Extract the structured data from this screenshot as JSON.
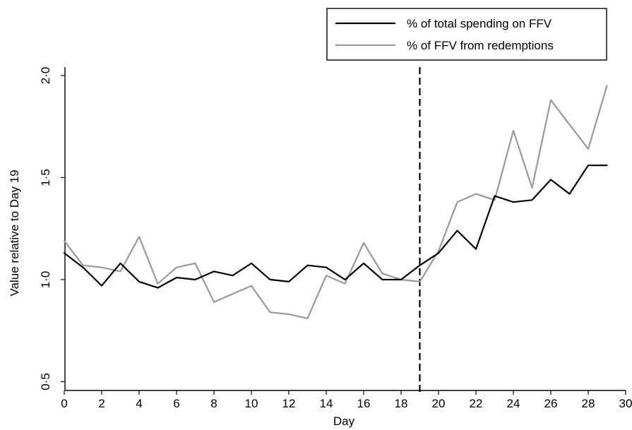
{
  "chart_data": {
    "type": "line",
    "title": "",
    "xlabel": "Day",
    "ylabel": "Value relative to Day 19",
    "xlim": [
      0,
      30
    ],
    "ylim": [
      0.5,
      2.0
    ],
    "x_ticks": [
      0,
      2,
      4,
      6,
      8,
      10,
      12,
      14,
      16,
      18,
      20,
      22,
      24,
      26,
      28,
      30
    ],
    "x_tick_labels": [
      "0",
      "2",
      "4",
      "6",
      "8",
      "10",
      "12",
      "14",
      "16",
      "18",
      "20",
      "22",
      "24",
      "26",
      "28",
      "30"
    ],
    "y_ticks": [
      0.5,
      1.0,
      1.5,
      2.0
    ],
    "y_tick_labels": [
      "0·5",
      "1·0",
      "1·5",
      "2·0"
    ],
    "grid": false,
    "legend_position": "top-right",
    "vertical_reference_line": {
      "x": 19,
      "style": "dashed"
    },
    "x": [
      0,
      1,
      2,
      3,
      4,
      5,
      6,
      7,
      8,
      9,
      10,
      11,
      12,
      13,
      14,
      15,
      16,
      17,
      18,
      19,
      20,
      21,
      22,
      23,
      24,
      25,
      26,
      27,
      28,
      29
    ],
    "series": [
      {
        "name": "% of total spending on FFV",
        "color": "#000000",
        "values": [
          1.13,
          1.06,
          0.97,
          1.08,
          0.99,
          0.96,
          1.01,
          1.0,
          1.04,
          1.02,
          1.08,
          1.0,
          0.99,
          1.07,
          1.06,
          1.0,
          1.08,
          1.0,
          1.0,
          1.07,
          1.13,
          1.24,
          1.15,
          1.41,
          1.38,
          1.39,
          1.49,
          1.42,
          1.56,
          1.56
        ]
      },
      {
        "name": "% of FFV from redemptions",
        "color": "#999999",
        "values": [
          1.19,
          1.07,
          1.06,
          1.04,
          1.21,
          0.98,
          1.06,
          1.08,
          0.89,
          0.93,
          0.97,
          0.84,
          0.83,
          0.81,
          1.02,
          0.98,
          1.18,
          1.03,
          1.0,
          0.99,
          1.14,
          1.38,
          1.42,
          1.39,
          1.73,
          1.45,
          1.88,
          1.76,
          1.64,
          1.95
        ]
      }
    ]
  }
}
